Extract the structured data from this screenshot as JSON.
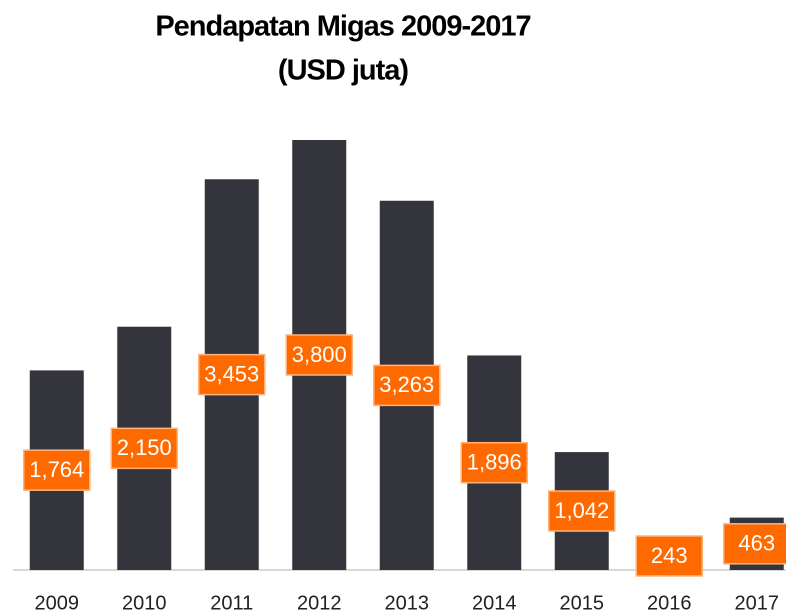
{
  "chart_data": {
    "type": "bar",
    "title": "Pendapatan Migas 2009-2017",
    "subtitle": "(USD juta)",
    "categories": [
      "2009",
      "2010",
      "2011",
      "2012",
      "2013",
      "2014",
      "2015",
      "2016",
      "2017"
    ],
    "values": [
      1764,
      2150,
      3453,
      3800,
      3263,
      1896,
      1042,
      243,
      463
    ],
    "value_labels": [
      "1,764",
      "2,150",
      "3,453",
      "3,800",
      "3,263",
      "1,896",
      "1,042",
      "243",
      "463"
    ],
    "color": "#34343c",
    "label_color": "#ff6a00"
  }
}
